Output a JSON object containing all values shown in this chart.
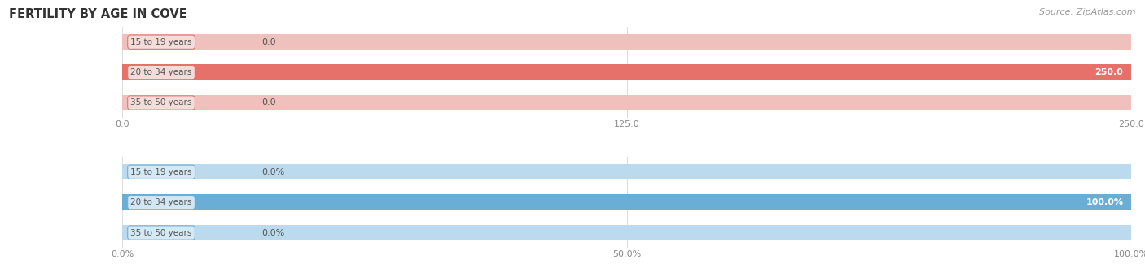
{
  "title": "FERTILITY BY AGE IN COVE",
  "source": "Source: ZipAtlas.com",
  "top_chart": {
    "categories": [
      "15 to 19 years",
      "20 to 34 years",
      "35 to 50 years"
    ],
    "values": [
      0.0,
      250.0,
      0.0
    ],
    "xlim": [
      0,
      250.0
    ],
    "xticks": [
      0.0,
      125.0,
      250.0
    ],
    "xtick_labels": [
      "0.0",
      "125.0",
      "250.0"
    ],
    "bar_color_full": "#E5716A",
    "bar_color_empty": "#F0C0BC",
    "label_box_color": "#F5DEDD",
    "label_border_color": "#E5716A"
  },
  "bottom_chart": {
    "categories": [
      "15 to 19 years",
      "20 to 34 years",
      "35 to 50 years"
    ],
    "values": [
      0.0,
      100.0,
      0.0
    ],
    "xlim": [
      0,
      100.0
    ],
    "xticks": [
      0.0,
      50.0,
      100.0
    ],
    "xtick_labels": [
      "0.0%",
      "50.0%",
      "100.0%"
    ],
    "bar_color_full": "#6AAED6",
    "bar_color_empty": "#BBDAED",
    "label_box_color": "#D6EAF6",
    "label_border_color": "#6AAED6"
  },
  "background_color": "#ffffff",
  "label_text_color": "#555555",
  "title_color": "#333333",
  "source_color": "#999999",
  "grid_color": "#dddddd",
  "bar_height": 0.52,
  "figsize": [
    14.06,
    3.3
  ],
  "dpi": 100
}
